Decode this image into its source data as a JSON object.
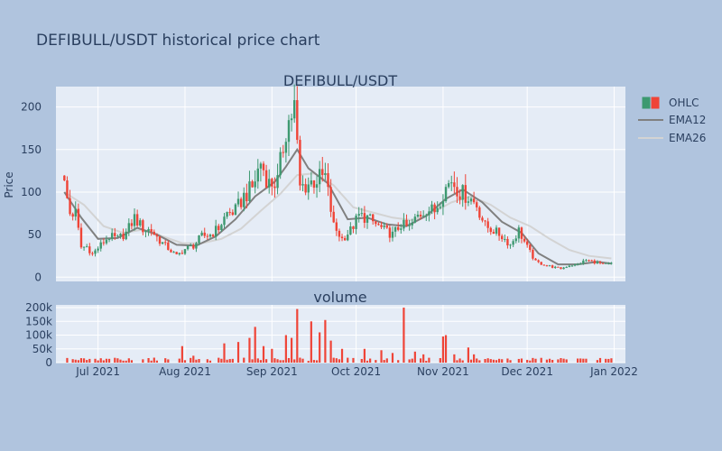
{
  "page_title": "DEFIBULL/USDT historical price chart",
  "colors": {
    "background": "#b0c4de",
    "plot_bg": "#e5ecf6",
    "grid": "#ffffff",
    "increasing": "#3d9970",
    "decreasing": "#ef4437",
    "ema12": "#808080",
    "ema26": "#d3d3d3",
    "volume_bar": "#ef4437",
    "text": "#2a3f5f"
  },
  "chart_data": [
    {
      "type": "candlestick",
      "title": "DEFIBULL/USDT",
      "ylabel": "Price",
      "xlabel": "",
      "ylim": [
        -5,
        224
      ],
      "yticks": [
        0,
        50,
        100,
        150,
        200
      ],
      "x_ticks": [
        "Jul 2021",
        "Aug 2021",
        "Sep 2021",
        "Oct 2021",
        "Nov 2021",
        "Dec 2021",
        "Jan 2022"
      ],
      "legend": [
        "OHLC",
        "EMA12",
        "EMA26"
      ],
      "legend_position": "top-right",
      "grid": true,
      "close_path": [
        [
          "2021-06-19",
          108
        ],
        [
          "2021-06-21",
          75
        ],
        [
          "2021-06-23",
          75
        ],
        [
          "2021-06-25",
          35
        ],
        [
          "2021-06-27",
          36
        ],
        [
          "2021-06-29",
          27
        ],
        [
          "2021-07-02",
          38
        ],
        [
          "2021-07-05",
          48
        ],
        [
          "2021-07-08",
          45
        ],
        [
          "2021-07-11",
          52
        ],
        [
          "2021-07-14",
          70
        ],
        [
          "2021-07-17",
          57
        ],
        [
          "2021-07-20",
          55
        ],
        [
          "2021-07-23",
          43
        ],
        [
          "2021-07-26",
          34
        ],
        [
          "2021-07-29",
          25
        ],
        [
          "2021-08-01",
          33
        ],
        [
          "2021-08-04",
          37
        ],
        [
          "2021-08-07",
          48
        ],
        [
          "2021-08-10",
          50
        ],
        [
          "2021-08-13",
          58
        ],
        [
          "2021-08-16",
          75
        ],
        [
          "2021-08-19",
          78
        ],
        [
          "2021-08-22",
          95
        ],
        [
          "2021-08-25",
          105
        ],
        [
          "2021-08-28",
          135
        ],
        [
          "2021-08-31",
          110
        ],
        [
          "2021-09-03",
          112
        ],
        [
          "2021-09-06",
          175
        ],
        [
          "2021-09-09",
          200
        ],
        [
          "2021-09-11",
          105
        ],
        [
          "2021-09-14",
          110
        ],
        [
          "2021-09-17",
          115
        ],
        [
          "2021-09-20",
          118
        ],
        [
          "2021-09-23",
          60
        ],
        [
          "2021-09-26",
          45
        ],
        [
          "2021-09-29",
          55
        ],
        [
          "2021-10-02",
          72
        ],
        [
          "2021-10-05",
          70
        ],
        [
          "2021-10-08",
          62
        ],
        [
          "2021-10-11",
          55
        ],
        [
          "2021-10-14",
          50
        ],
        [
          "2021-10-17",
          62
        ],
        [
          "2021-10-20",
          58
        ],
        [
          "2021-10-23",
          72
        ],
        [
          "2021-10-26",
          80
        ],
        [
          "2021-10-29",
          78
        ],
        [
          "2021-11-01",
          100
        ],
        [
          "2021-11-04",
          115
        ],
        [
          "2021-11-07",
          100
        ],
        [
          "2021-11-10",
          95
        ],
        [
          "2021-11-13",
          85
        ],
        [
          "2021-11-16",
          60
        ],
        [
          "2021-11-19",
          55
        ],
        [
          "2021-11-22",
          48
        ],
        [
          "2021-11-25",
          38
        ],
        [
          "2021-11-28",
          55
        ],
        [
          "2021-12-01",
          35
        ],
        [
          "2021-12-04",
          18
        ],
        [
          "2021-12-07",
          15
        ],
        [
          "2021-12-10",
          12
        ],
        [
          "2021-12-13",
          10
        ],
        [
          "2021-12-16",
          14
        ],
        [
          "2021-12-19",
          15
        ],
        [
          "2021-12-22",
          20
        ],
        [
          "2021-12-25",
          18
        ],
        [
          "2021-12-28",
          15
        ],
        [
          "2021-12-31",
          16
        ]
      ],
      "ema12_path": [
        [
          "2021-06-19",
          100
        ],
        [
          "2021-06-25",
          70
        ],
        [
          "2021-07-01",
          45
        ],
        [
          "2021-07-08",
          46
        ],
        [
          "2021-07-15",
          58
        ],
        [
          "2021-07-22",
          50
        ],
        [
          "2021-07-29",
          38
        ],
        [
          "2021-08-05",
          37
        ],
        [
          "2021-08-12",
          48
        ],
        [
          "2021-08-19",
          68
        ],
        [
          "2021-08-26",
          95
        ],
        [
          "2021-09-02",
          112
        ],
        [
          "2021-09-06",
          130
        ],
        [
          "2021-09-10",
          150
        ],
        [
          "2021-09-14",
          128
        ],
        [
          "2021-09-21",
          110
        ],
        [
          "2021-09-28",
          68
        ],
        [
          "2021-10-05",
          70
        ],
        [
          "2021-10-12",
          62
        ],
        [
          "2021-10-19",
          60
        ],
        [
          "2021-10-26",
          72
        ],
        [
          "2021-11-02",
          92
        ],
        [
          "2021-11-08",
          103
        ],
        [
          "2021-11-15",
          88
        ],
        [
          "2021-11-22",
          65
        ],
        [
          "2021-11-29",
          52
        ],
        [
          "2021-12-05",
          28
        ],
        [
          "2021-12-12",
          15
        ],
        [
          "2021-12-19",
          15
        ],
        [
          "2021-12-26",
          18
        ],
        [
          "2021-12-31",
          16
        ]
      ],
      "ema26_path": [
        [
          "2021-06-19",
          100
        ],
        [
          "2021-06-26",
          85
        ],
        [
          "2021-07-03",
          60
        ],
        [
          "2021-07-10",
          52
        ],
        [
          "2021-07-17",
          56
        ],
        [
          "2021-07-24",
          48
        ],
        [
          "2021-07-31",
          40
        ],
        [
          "2021-08-07",
          40
        ],
        [
          "2021-08-14",
          45
        ],
        [
          "2021-08-21",
          57
        ],
        [
          "2021-08-28",
          78
        ],
        [
          "2021-09-04",
          98
        ],
        [
          "2021-09-10",
          120
        ],
        [
          "2021-09-16",
          122
        ],
        [
          "2021-09-23",
          108
        ],
        [
          "2021-09-30",
          82
        ],
        [
          "2021-10-07",
          76
        ],
        [
          "2021-10-14",
          70
        ],
        [
          "2021-10-21",
          67
        ],
        [
          "2021-10-28",
          75
        ],
        [
          "2021-11-04",
          88
        ],
        [
          "2021-11-11",
          95
        ],
        [
          "2021-11-18",
          85
        ],
        [
          "2021-11-25",
          70
        ],
        [
          "2021-12-02",
          60
        ],
        [
          "2021-12-09",
          45
        ],
        [
          "2021-12-16",
          32
        ],
        [
          "2021-12-23",
          25
        ],
        [
          "2021-12-31",
          22
        ]
      ]
    },
    {
      "type": "bar",
      "title": "volume",
      "ylabel": "",
      "ylim": [
        0,
        210000
      ],
      "yticks": [
        0,
        50000,
        100000,
        150000,
        200000
      ],
      "ytick_labels": [
        "0",
        "50k",
        "100k",
        "150k",
        "200k"
      ],
      "grid": true,
      "spikes": [
        [
          "2021-07-31",
          60000
        ],
        [
          "2021-08-04",
          25000
        ],
        [
          "2021-08-15",
          70000
        ],
        [
          "2021-08-20",
          75000
        ],
        [
          "2021-08-24",
          90000
        ],
        [
          "2021-08-26",
          130000
        ],
        [
          "2021-08-29",
          60000
        ],
        [
          "2021-09-01",
          50000
        ],
        [
          "2021-09-06",
          100000
        ],
        [
          "2021-09-08",
          90000
        ],
        [
          "2021-09-10",
          195000
        ],
        [
          "2021-09-15",
          150000
        ],
        [
          "2021-09-18",
          110000
        ],
        [
          "2021-09-20",
          155000
        ],
        [
          "2021-09-22",
          80000
        ],
        [
          "2021-09-26",
          50000
        ],
        [
          "2021-10-04",
          50000
        ],
        [
          "2021-10-10",
          45000
        ],
        [
          "2021-10-14",
          35000
        ],
        [
          "2021-10-18",
          200000
        ],
        [
          "2021-10-22",
          40000
        ],
        [
          "2021-10-25",
          30000
        ],
        [
          "2021-11-01",
          95000
        ],
        [
          "2021-11-02",
          100000
        ],
        [
          "2021-11-05",
          30000
        ],
        [
          "2021-11-10",
          55000
        ],
        [
          "2021-11-12",
          30000
        ],
        [
          "2021-12-20",
          15000
        ]
      ]
    }
  ]
}
